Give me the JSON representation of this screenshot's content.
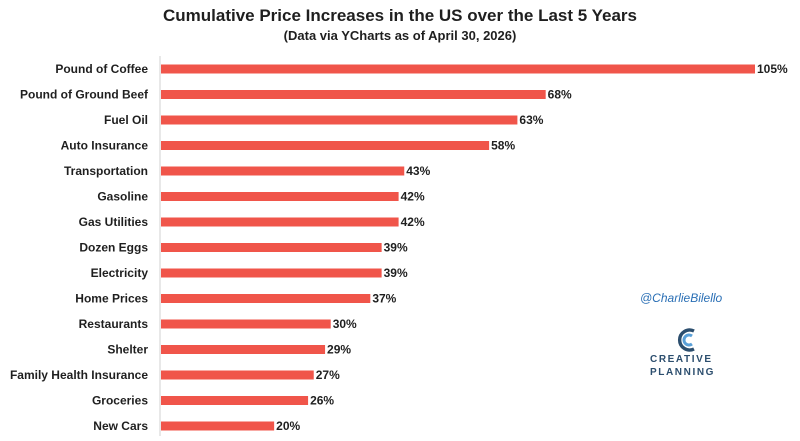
{
  "chart_data": {
    "type": "bar",
    "orientation": "horizontal",
    "title": "Cumulative Price Increases in the US over the Last 5 Years",
    "subtitle": "(Data via YCharts as of April 30, 2026)",
    "categories": [
      "Pound of Coffee",
      "Pound of Ground Beef",
      "Fuel Oil",
      "Auto Insurance",
      "Transportation",
      "Gasoline",
      "Gas Utilities",
      "Dozen Eggs",
      "Electricity",
      "Home Prices",
      "Restaurants",
      "Shelter",
      "Family Health Insurance",
      "Groceries",
      "New Cars"
    ],
    "values": [
      105,
      68,
      63,
      58,
      43,
      42,
      42,
      39,
      39,
      37,
      30,
      29,
      27,
      26,
      20
    ],
    "value_labels": [
      "105%",
      "68%",
      "63%",
      "58%",
      "43%",
      "42%",
      "42%",
      "39%",
      "39%",
      "37%",
      "30%",
      "29%",
      "27%",
      "26%",
      "20%"
    ],
    "xlim": [
      0,
      105
    ],
    "grid": false,
    "bar_color": "#f0554a"
  },
  "watermark": {
    "handle": "@CharlieBilello",
    "logo_line1": "CREATIVE",
    "logo_line2": "PLANNING"
  }
}
